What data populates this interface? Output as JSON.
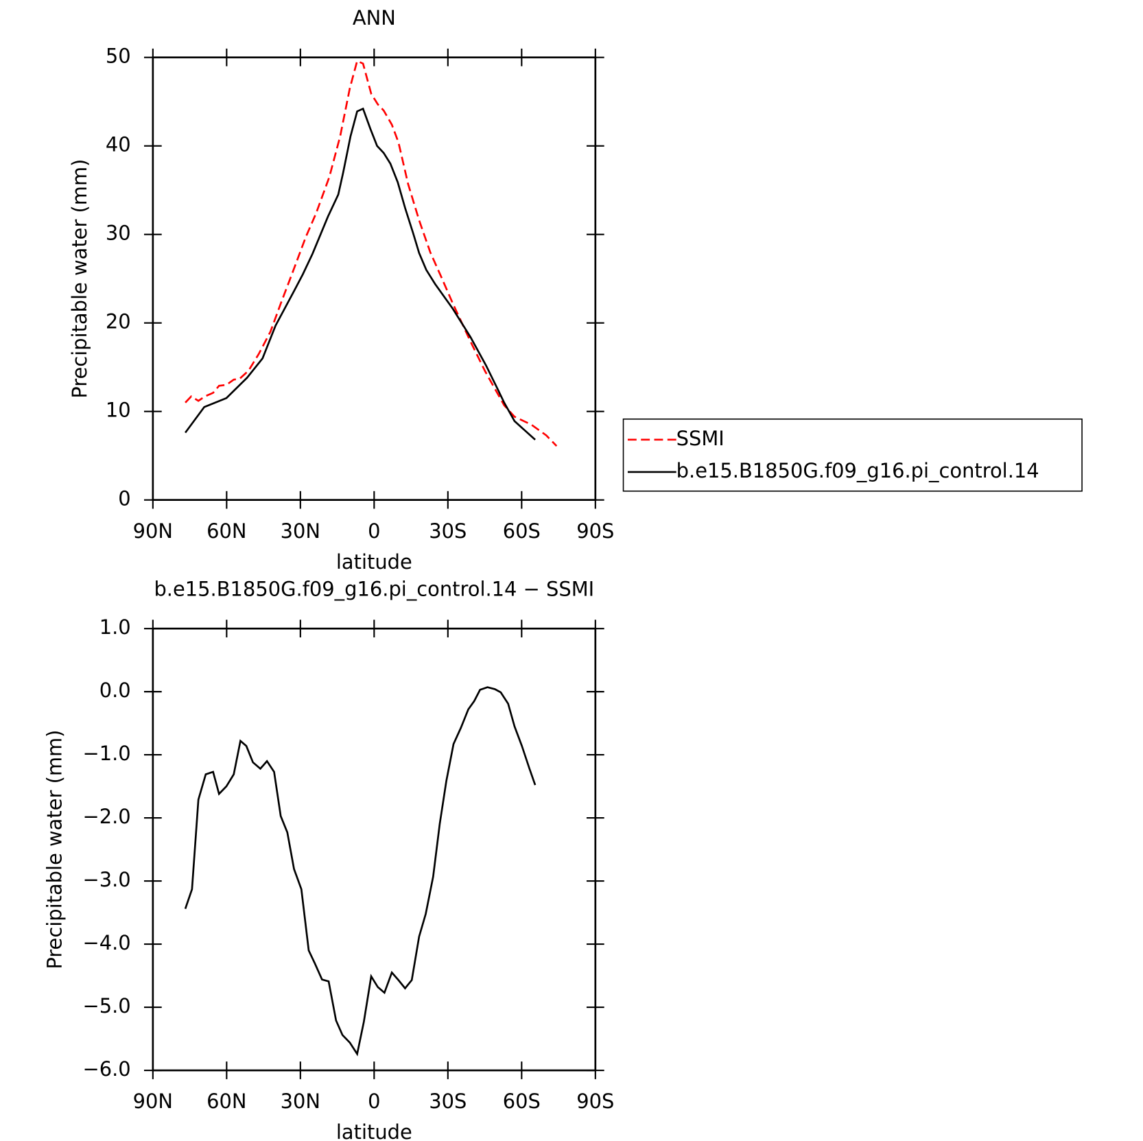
{
  "chart_data": [
    {
      "type": "line",
      "title": "ANN",
      "xlabel": "latitude",
      "ylabel": "Precipitable water (mm)",
      "xlim": [
        90,
        -90
      ],
      "xticks": [
        {
          "value": 90,
          "label": "90N"
        },
        {
          "value": 60,
          "label": "60N"
        },
        {
          "value": 30,
          "label": "30N"
        },
        0,
        {
          "value": -30,
          "label": "30S"
        },
        {
          "value": -60,
          "label": "60S"
        },
        {
          "value": -90,
          "label": "90S"
        }
      ],
      "ylim": [
        0,
        50
      ],
      "yticks": [
        0,
        10,
        20,
        30,
        40,
        50
      ],
      "series": [
        {
          "name": "SSMI",
          "color": "#ff0000",
          "dashed": true,
          "x": [
            76.8,
            74.4,
            71.5,
            68.8,
            65.5,
            63.1,
            60.1,
            57.1,
            54.7,
            51.1,
            46.9,
            42.2,
            37.7,
            33.2,
            27.8,
            23.6,
            18.2,
            13.8,
            9.9,
            6.9,
            4.5,
            1.2,
            -1.5,
            -3.9,
            -7.2,
            -9.9,
            -13.8,
            -18.3,
            -22.8,
            -27.3,
            -32.0,
            -39.2,
            -45.2,
            -52.9,
            -57.1,
            -64.0,
            -70.0,
            -74.2
          ],
          "values": [
            11.0,
            11.7,
            11.2,
            11.7,
            12.1,
            12.9,
            13.0,
            13.6,
            13.7,
            14.6,
            16.5,
            19.0,
            22.4,
            25.7,
            29.7,
            32.4,
            36.5,
            41.1,
            46.5,
            49.6,
            49.3,
            45.9,
            44.7,
            44.0,
            42.4,
            40.4,
            35.7,
            31.6,
            28.0,
            25.2,
            22.2,
            17.9,
            14.5,
            10.7,
            9.4,
            8.5,
            7.3,
            6.1
          ]
        },
        {
          "name": "b.e15.B1850G.f09_g16.pi_control.14",
          "color": "#000000",
          "dashed": false,
          "x": [
            76.8,
            69.1,
            60.1,
            51.7,
            45.4,
            40.1,
            32.6,
            29.0,
            25.1,
            18.8,
            14.6,
            12.6,
            9.6,
            6.9,
            4.5,
            1.5,
            -1.2,
            -3.9,
            -6.6,
            -9.6,
            -12.6,
            -15.9,
            -18.3,
            -21.2,
            -24.8,
            -32.0,
            -39.2,
            -45.5,
            -50.3,
            -52.9,
            -57.1,
            -65.5
          ],
          "values": [
            7.6,
            10.5,
            11.5,
            13.8,
            16.0,
            19.7,
            23.6,
            25.5,
            27.8,
            32.0,
            34.5,
            37.0,
            41.1,
            43.9,
            44.2,
            41.9,
            40.0,
            39.2,
            38.0,
            35.9,
            33.0,
            30.1,
            27.9,
            26.0,
            24.4,
            21.6,
            18.4,
            15.2,
            12.5,
            11.0,
            8.9,
            6.8
          ]
        }
      ]
    },
    {
      "type": "line",
      "title": "b.e15.B1850G.f09_g16.pi_control.14 − SSMI",
      "xlabel": "latitude",
      "ylabel": "Precipitable water (mm)",
      "xlim": [
        90,
        -90
      ],
      "xticks": [
        {
          "value": 90,
          "label": "90N"
        },
        {
          "value": 60,
          "label": "60N"
        },
        {
          "value": 30,
          "label": "30N"
        },
        0,
        {
          "value": -30,
          "label": "30S"
        },
        {
          "value": -60,
          "label": "60S"
        },
        {
          "value": -90,
          "label": "90S"
        }
      ],
      "ylim": [
        -6,
        1
      ],
      "yticks": [
        {
          "value": 1,
          "label": "1.0"
        },
        {
          "value": 0,
          "label": "0.0"
        },
        {
          "value": -1,
          "label": "−1.0"
        },
        {
          "value": -2,
          "label": "−2.0"
        },
        {
          "value": -3,
          "label": "−3.0"
        },
        {
          "value": -4,
          "label": "−4.0"
        },
        {
          "value": -5,
          "label": "−5.0"
        },
        {
          "value": -6,
          "label": "−6.0"
        }
      ],
      "series": [
        {
          "color": "#000000",
          "dashed": false,
          "x": [
            76.8,
            74.1,
            71.5,
            68.5,
            65.5,
            63.1,
            60.1,
            57.1,
            54.4,
            52.0,
            49.3,
            46.3,
            43.6,
            40.7,
            38.0,
            35.3,
            32.6,
            29.6,
            26.6,
            24.2,
            21.2,
            18.5,
            15.5,
            12.9,
            9.9,
            6.9,
            4.2,
            1.2,
            -1.5,
            -4.2,
            -7.2,
            -9.9,
            -12.6,
            -15.3,
            -18.3,
            -21.0,
            -24.0,
            -26.7,
            -29.4,
            -32.3,
            -35.3,
            -38.3,
            -40.7,
            -43.1,
            -46.1,
            -49.1,
            -51.5,
            -54.5,
            -57.1,
            -60.1,
            -63.1,
            -65.5
          ],
          "values": [
            -3.44,
            -3.13,
            -1.71,
            -1.31,
            -1.27,
            -1.62,
            -1.5,
            -1.31,
            -0.78,
            -0.86,
            -1.12,
            -1.22,
            -1.1,
            -1.27,
            -1.97,
            -2.23,
            -2.81,
            -3.13,
            -4.1,
            -4.3,
            -4.56,
            -4.59,
            -5.21,
            -5.44,
            -5.56,
            -5.74,
            -5.23,
            -4.51,
            -4.68,
            -4.77,
            -4.45,
            -4.57,
            -4.7,
            -4.57,
            -3.88,
            -3.52,
            -2.93,
            -2.09,
            -1.41,
            -0.83,
            -0.57,
            -0.28,
            -0.15,
            0.03,
            0.07,
            0.04,
            -0.01,
            -0.19,
            -0.55,
            -0.86,
            -1.21,
            -1.48
          ]
        }
      ]
    }
  ]
}
